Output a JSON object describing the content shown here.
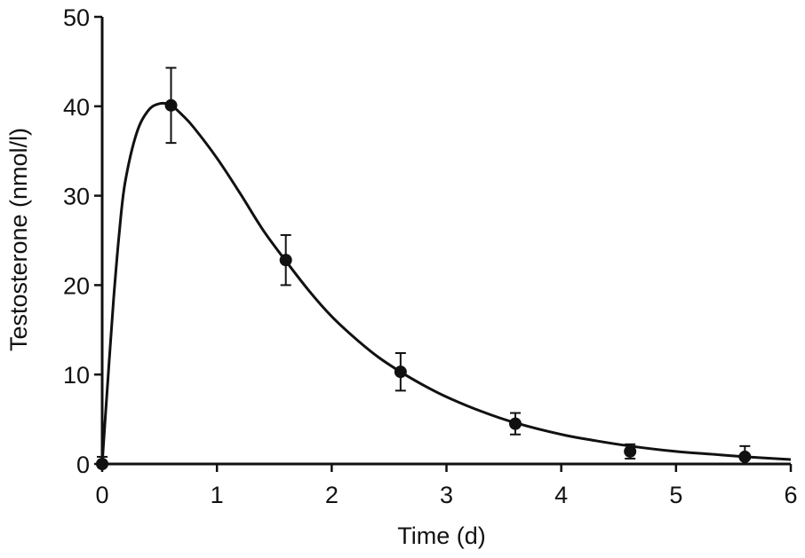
{
  "chart_data": {
    "type": "scatter",
    "title": "",
    "xlabel": "Time (d)",
    "ylabel": "Testosterone (nmol/l)",
    "xlim": [
      0,
      6
    ],
    "ylim": [
      0,
      50
    ],
    "xticks": [
      "0",
      "1",
      "2",
      "3",
      "4",
      "5",
      "6"
    ],
    "yticks": [
      "0",
      "10",
      "20",
      "30",
      "40",
      "50"
    ],
    "grid": false,
    "legend": "none",
    "colors": {
      "ink": "#111111",
      "background": "#ffffff"
    },
    "series": [
      {
        "points": [
          {
            "x": 0.0,
            "y": 0.0,
            "err": 0.8
          },
          {
            "x": 0.6,
            "y": 40.1,
            "err": 4.2
          },
          {
            "x": 1.6,
            "y": 22.8,
            "err": 2.8
          },
          {
            "x": 2.6,
            "y": 10.3,
            "err": 2.1
          },
          {
            "x": 3.6,
            "y": 4.5,
            "err": 1.2
          },
          {
            "x": 4.6,
            "y": 1.4,
            "err": 0.8
          },
          {
            "x": 5.6,
            "y": 0.8,
            "err": 1.2
          }
        ]
      }
    ],
    "fit_curve": {
      "x": [
        0,
        0.05,
        0.1,
        0.15,
        0.2,
        0.3,
        0.4,
        0.5,
        0.6,
        0.7,
        0.8,
        1.0,
        1.2,
        1.4,
        1.6,
        1.8,
        2.0,
        2.2,
        2.4,
        2.6,
        2.8,
        3.0,
        3.3,
        3.6,
        4.0,
        4.3,
        4.6,
        5.0,
        5.3,
        5.6,
        6.0
      ],
      "y": [
        0,
        9.5,
        18.5,
        26.0,
        31.5,
        37.0,
        39.5,
        40.3,
        40.1,
        39.0,
        37.6,
        34.2,
        30.3,
        26.2,
        22.7,
        19.4,
        16.5,
        14.1,
        12.0,
        10.3,
        8.8,
        7.5,
        5.9,
        4.6,
        3.3,
        2.6,
        2.0,
        1.4,
        1.1,
        0.8,
        0.5
      ]
    }
  }
}
